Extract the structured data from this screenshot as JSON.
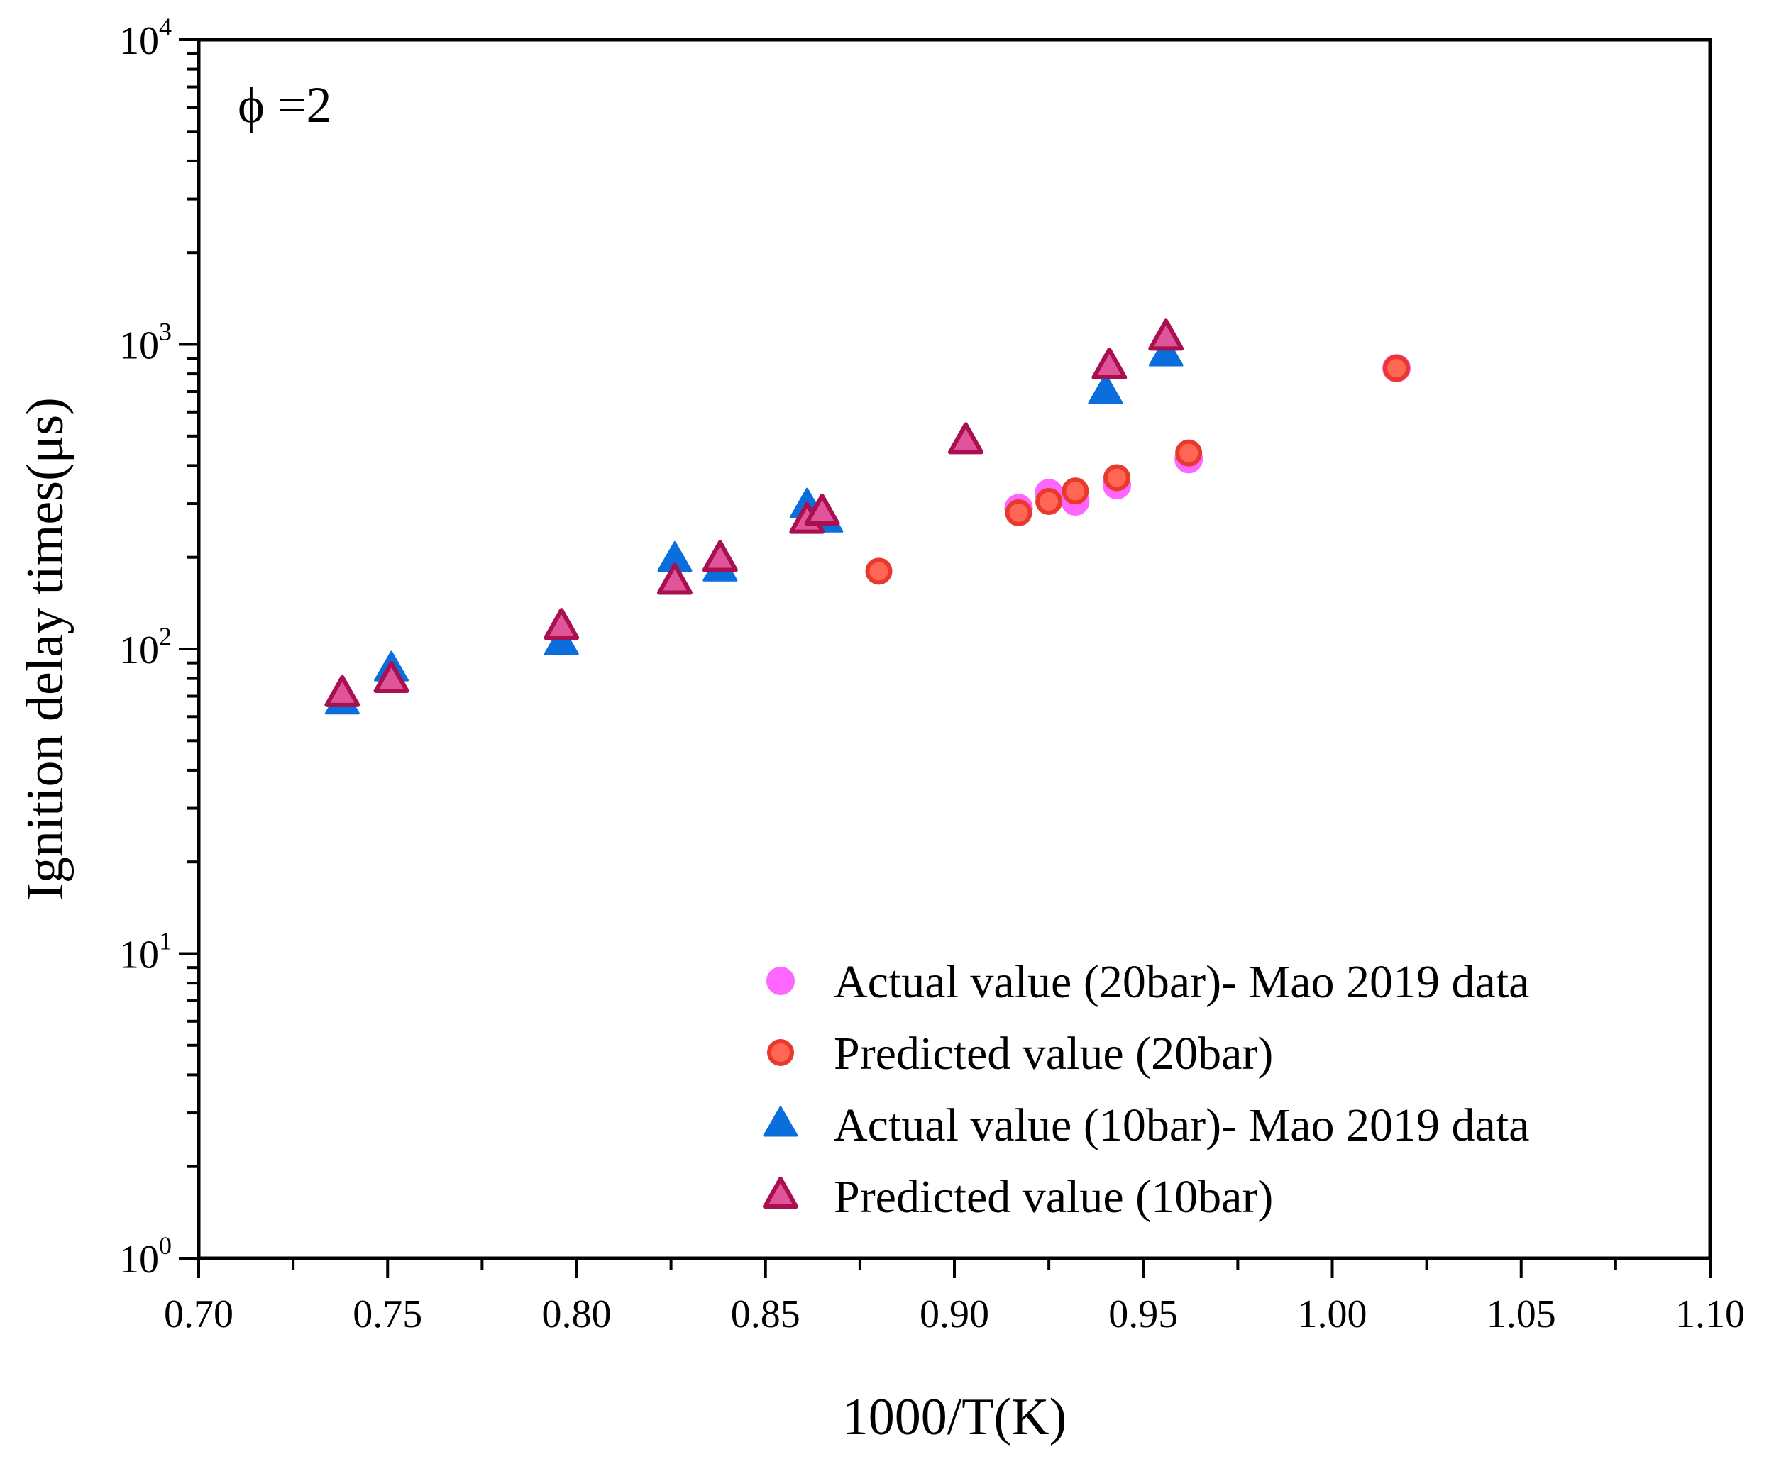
{
  "chart_data": {
    "type": "scatter",
    "title": "",
    "annotation": "ϕ =2",
    "xlabel": "1000/T(K)",
    "ylabel": "Ignition delay times(μs)",
    "xscale": "linear",
    "yscale": "log",
    "xlim": [
      0.7,
      1.1
    ],
    "ylim": [
      1,
      10000
    ],
    "x_ticks": [
      "0.70",
      "0.75",
      "0.80",
      "0.85",
      "0.90",
      "0.95",
      "1.00",
      "1.05",
      "1.10"
    ],
    "y_ticks": [
      {
        "base": "10",
        "exp": "0"
      },
      {
        "base": "10",
        "exp": "1"
      },
      {
        "base": "10",
        "exp": "2"
      },
      {
        "base": "10",
        "exp": "3"
      },
      {
        "base": "10",
        "exp": "4"
      }
    ],
    "grid": false,
    "legend_position": "bottom-right",
    "series": [
      {
        "name": "Actual value (20bar)- Mao 2019 data",
        "marker": "circle-filled",
        "color": "#ff66ff",
        "points": [
          {
            "x": 0.917,
            "y": 290
          },
          {
            "x": 0.925,
            "y": 325
          },
          {
            "x": 0.932,
            "y": 305
          },
          {
            "x": 0.943,
            "y": 345
          },
          {
            "x": 0.962,
            "y": 420
          },
          {
            "x": 1.017,
            "y": 835
          }
        ]
      },
      {
        "name": "Predicted value (20bar)",
        "marker": "circle-outline",
        "color": "#ff6655",
        "edge_color": "#e8392c",
        "points": [
          {
            "x": 0.88,
            "y": 180
          },
          {
            "x": 0.917,
            "y": 280
          },
          {
            "x": 0.925,
            "y": 305
          },
          {
            "x": 0.932,
            "y": 330
          },
          {
            "x": 0.943,
            "y": 365
          },
          {
            "x": 0.962,
            "y": 440
          },
          {
            "x": 1.017,
            "y": 835
          }
        ]
      },
      {
        "name": "Actual value (10bar)- Mao 2019 data",
        "marker": "triangle-filled",
        "color": "#0a6edc",
        "points": [
          {
            "x": 0.738,
            "y": 67
          },
          {
            "x": 0.751,
            "y": 86
          },
          {
            "x": 0.796,
            "y": 105
          },
          {
            "x": 0.826,
            "y": 197
          },
          {
            "x": 0.838,
            "y": 183
          },
          {
            "x": 0.861,
            "y": 295
          },
          {
            "x": 0.866,
            "y": 265
          },
          {
            "x": 0.94,
            "y": 700
          },
          {
            "x": 0.956,
            "y": 930
          }
        ]
      },
      {
        "name": "Predicted value (10bar)",
        "marker": "triangle-outline",
        "color": "#e0559a",
        "edge_color": "#a8104f",
        "points": [
          {
            "x": 0.738,
            "y": 71
          },
          {
            "x": 0.751,
            "y": 79
          },
          {
            "x": 0.796,
            "y": 118
          },
          {
            "x": 0.826,
            "y": 166
          },
          {
            "x": 0.838,
            "y": 197
          },
          {
            "x": 0.861,
            "y": 263
          },
          {
            "x": 0.865,
            "y": 280
          },
          {
            "x": 0.903,
            "y": 480
          },
          {
            "x": 0.941,
            "y": 845
          },
          {
            "x": 0.956,
            "y": 1050
          }
        ]
      }
    ]
  }
}
